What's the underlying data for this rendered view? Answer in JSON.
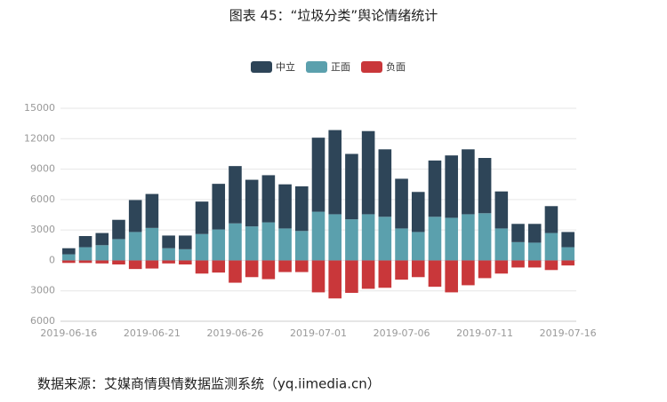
{
  "chart_data": {
    "type": "bar",
    "title": "图表 45：“垃圾分类”舆论情绪统计",
    "source": "数据来源：艾媒商情舆情数据监测系统（yq.iimedia.cn）",
    "categories": [
      "2019-06-16",
      null,
      null,
      null,
      null,
      "2019-06-21",
      null,
      null,
      null,
      null,
      "2019-06-26",
      null,
      null,
      null,
      null,
      "2019-07-01",
      null,
      null,
      null,
      null,
      "2019-07-06",
      null,
      null,
      null,
      null,
      "2019-07-11",
      null,
      null,
      null,
      null,
      "2019-07-16"
    ],
    "series": [
      {
        "name": "中立",
        "color": "#2e4558",
        "values": [
          600,
          1100,
          1200,
          1900,
          3150,
          3350,
          1250,
          1350,
          3200,
          4500,
          5650,
          4600,
          4650,
          4350,
          4400,
          7300,
          8300,
          6450,
          8200,
          6650,
          4900,
          3950,
          5550,
          6150,
          6400,
          5450,
          3650,
          1800,
          1850,
          2650,
          1500
        ]
      },
      {
        "name": "正面",
        "color": "#5ba0ad",
        "values": [
          600,
          1300,
          1500,
          2100,
          2800,
          3200,
          1200,
          1100,
          2600,
          3050,
          3650,
          3350,
          3750,
          3150,
          2900,
          4800,
          4550,
          4050,
          4550,
          4300,
          3150,
          2800,
          4300,
          4200,
          4550,
          4650,
          3150,
          1800,
          1750,
          2700,
          1300
        ]
      },
      {
        "name": "负面",
        "color": "#c9373a",
        "values": [
          -250,
          -250,
          -300,
          -400,
          -850,
          -800,
          -300,
          -400,
          -1300,
          -1200,
          -2200,
          -1650,
          -1850,
          -1150,
          -1150,
          -3150,
          -3750,
          -3200,
          -2800,
          -2700,
          -1900,
          -1650,
          -2600,
          -3150,
          -2450,
          -1750,
          -1300,
          -700,
          -700,
          -950,
          -500
        ]
      }
    ],
    "ylim": [
      -6000,
      15000
    ],
    "yticks": [
      {
        "value": -6000,
        "label": "6000"
      },
      {
        "value": -3000,
        "label": "3000"
      },
      0,
      3000,
      6000,
      9000,
      12000,
      15000
    ],
    "grid": true,
    "stacked": true,
    "legend": "top"
  }
}
